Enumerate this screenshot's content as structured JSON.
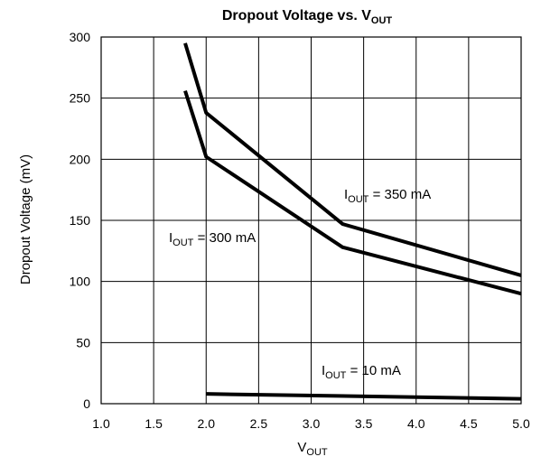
{
  "chart_data": {
    "type": "line",
    "title": {
      "main": "Dropout Voltage vs. V",
      "sub": "OUT"
    },
    "xlabel": {
      "main": "V",
      "sub": "OUT"
    },
    "ylabel": "Dropout Voltage (mV)",
    "xlim": [
      1.0,
      5.0
    ],
    "ylim": [
      0,
      300
    ],
    "x_ticks": [
      "1.0",
      "1.5",
      "2.0",
      "2.5",
      "3.0",
      "3.5",
      "4.0",
      "4.5",
      "5.0"
    ],
    "y_ticks": [
      "0",
      "50",
      "100",
      "150",
      "200",
      "250",
      "300"
    ],
    "grid": true,
    "series": [
      {
        "key": "s350",
        "label": {
          "pre": "I",
          "sub": "OUT",
          "post": " = 350 mA"
        },
        "points": [
          [
            1.8,
            295
          ],
          [
            2.0,
            238
          ],
          [
            3.3,
            147
          ],
          [
            5.0,
            105
          ]
        ]
      },
      {
        "key": "s300",
        "label": {
          "pre": "I",
          "sub": "OUT",
          "post": " = 300 mA"
        },
        "points": [
          [
            1.8,
            256
          ],
          [
            2.0,
            202
          ],
          [
            3.3,
            128
          ],
          [
            5.0,
            90
          ]
        ]
      },
      {
        "key": "s10",
        "label": {
          "pre": "I",
          "sub": "OUT",
          "post": " = 10 mA"
        },
        "points": [
          [
            2.0,
            8
          ],
          [
            5.0,
            4
          ]
        ]
      }
    ],
    "line_color": "#000000"
  }
}
